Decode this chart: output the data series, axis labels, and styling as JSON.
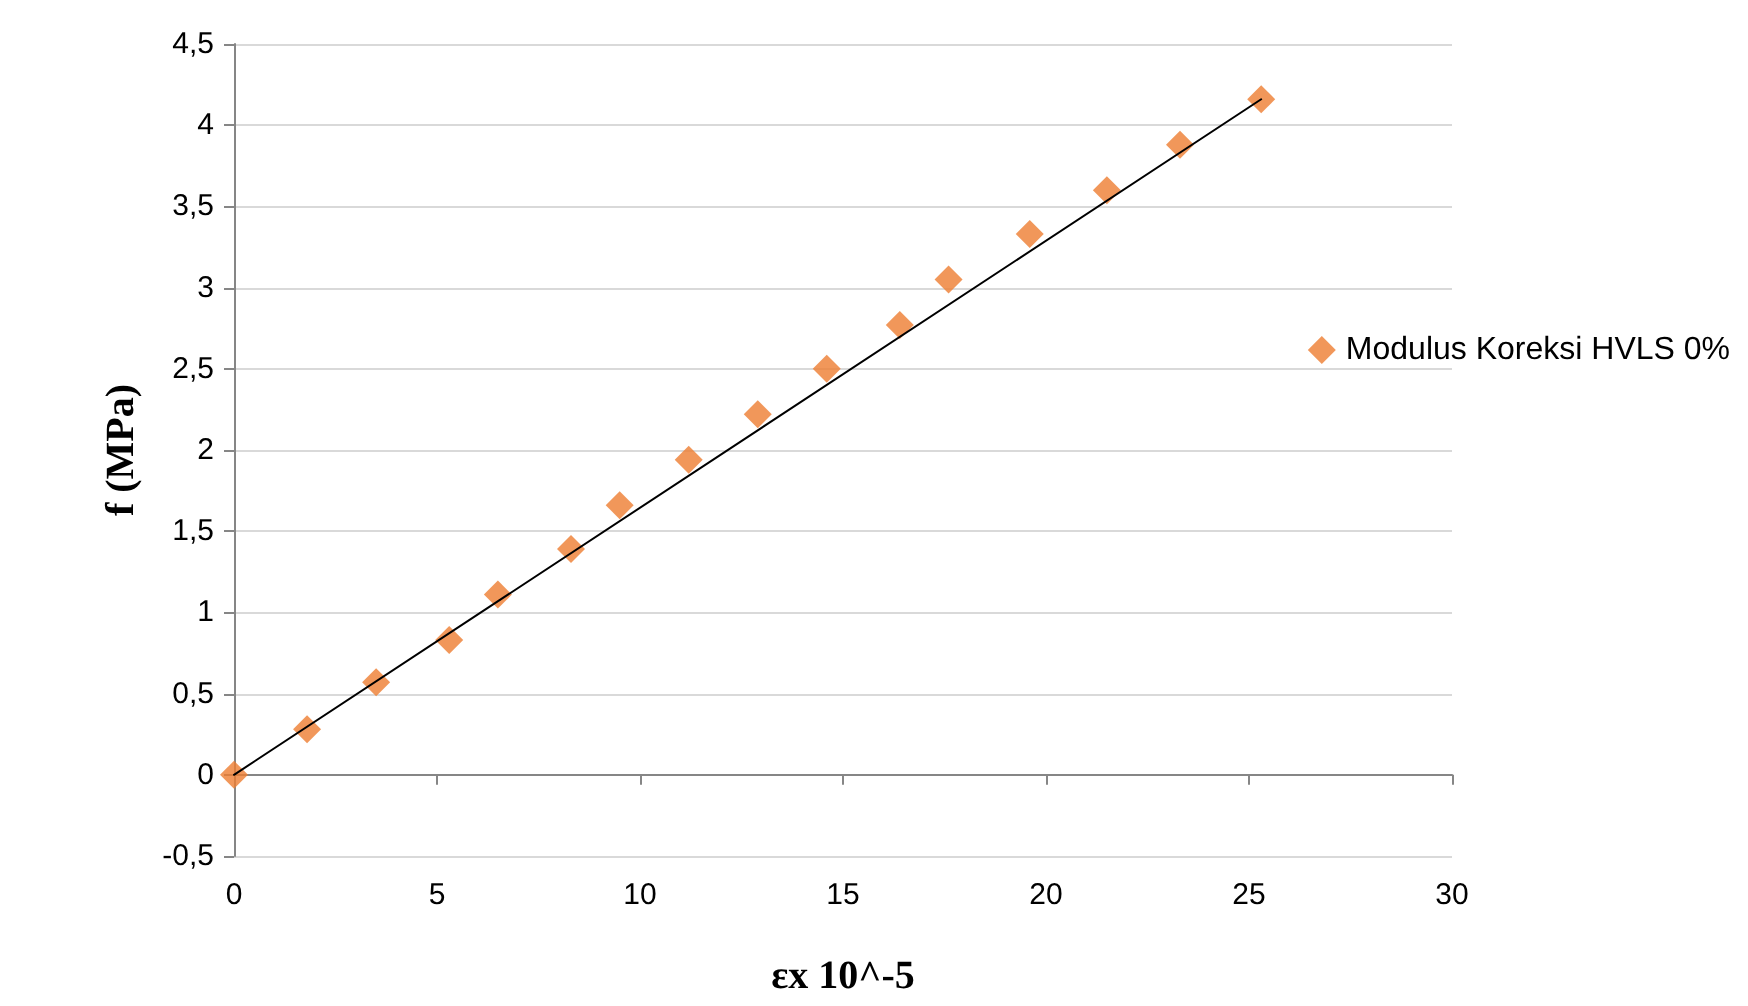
{
  "chart_data": {
    "type": "scatter",
    "xlabel": "εx 10^-5",
    "ylabel": "f (MPa)",
    "series": [
      {
        "name": "Modulus Koreksi HVLS 0%",
        "color": "#ed7d31",
        "marker": "diamond",
        "x": [
          0,
          1.8,
          3.5,
          5.3,
          6.5,
          8.3,
          9.5,
          11.2,
          12.9,
          14.6,
          16.4,
          17.6,
          19.6,
          21.5,
          23.3,
          25.3
        ],
        "values": [
          0,
          0.28,
          0.57,
          0.83,
          1.11,
          1.39,
          1.66,
          1.94,
          2.22,
          2.5,
          2.77,
          3.05,
          3.33,
          3.6,
          3.88,
          4.16
        ]
      },
      {
        "type": "line",
        "color": "#000000",
        "marker": "none",
        "x": [
          0,
          25.3
        ],
        "values": [
          0,
          4.16
        ]
      }
    ],
    "xlim": [
      0,
      30
    ],
    "xticks": [
      0,
      5,
      10,
      15,
      20,
      25,
      30
    ],
    "ylim": [
      -0.5,
      4.5
    ],
    "yticks": [
      {
        "value": -0.5,
        "label": "-0,5"
      },
      0,
      {
        "value": 0.5,
        "label": "0,5"
      },
      1,
      {
        "value": 1.5,
        "label": "1,5"
      },
      2,
      {
        "value": 2.5,
        "label": "2,5"
      },
      3,
      {
        "value": 3.5,
        "label": "3,5"
      },
      4,
      {
        "value": 4.5,
        "label": "4,5"
      }
    ],
    "grid": "y",
    "legend": "right"
  }
}
